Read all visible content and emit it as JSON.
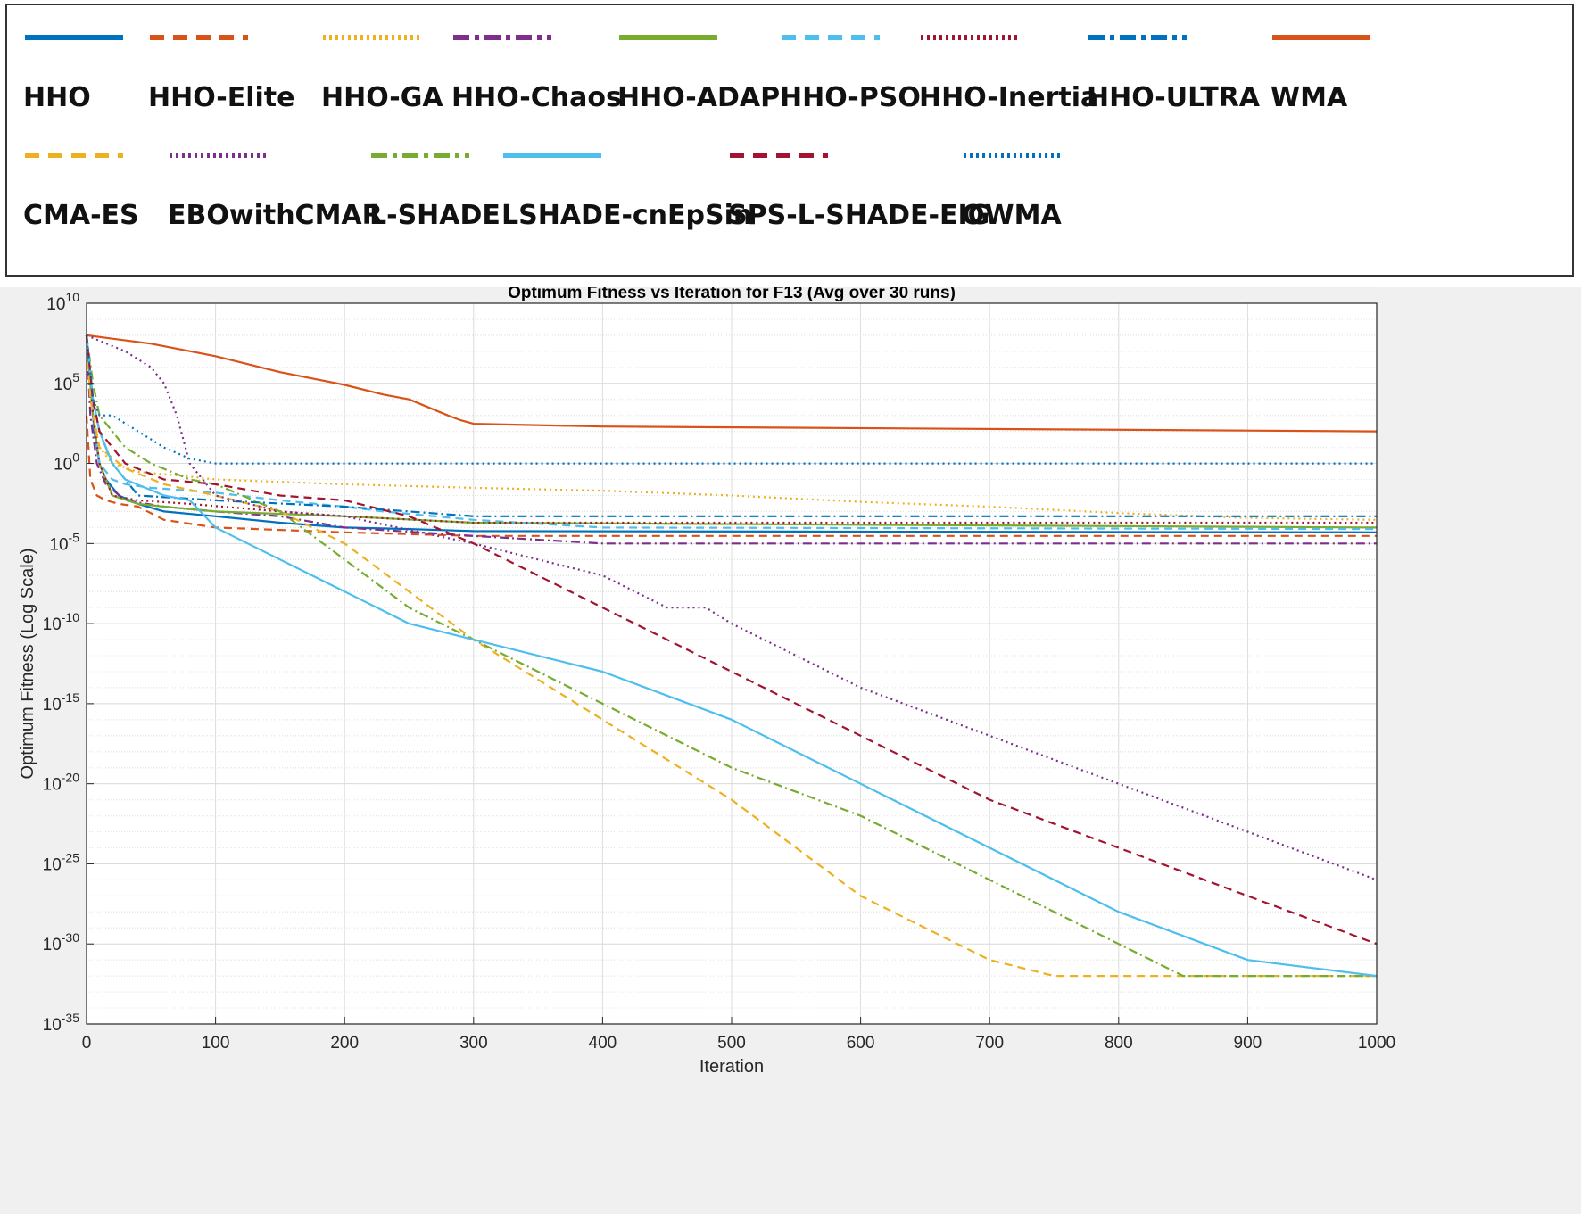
{
  "legend": [
    {
      "label": "HHO",
      "color": "#0072BD",
      "style": "solid"
    },
    {
      "label": "HHO-Elite",
      "color": "#D95319",
      "style": "dashed"
    },
    {
      "label": "HHO-GA",
      "color": "#EDB120",
      "style": "dotted"
    },
    {
      "label": "HHO-Chaos",
      "color": "#7E2F8E",
      "style": "dashdot"
    },
    {
      "label": "HHO-ADAP",
      "color": "#77AC30",
      "style": "solid"
    },
    {
      "label": "HHO-PSO",
      "color": "#4DBEEE",
      "style": "dashed"
    },
    {
      "label": "HHO-Inertia",
      "color": "#A2142F",
      "style": "dotted"
    },
    {
      "label": "HHO-ULTRA",
      "color": "#0072BD",
      "style": "dashdot"
    },
    {
      "label": "WMA",
      "color": "#D95319",
      "style": "solid"
    },
    {
      "label": "CMA-ES",
      "color": "#EDB120",
      "style": "dashed"
    },
    {
      "label": "EBOwithCMAR",
      "color": "#7E2F8E",
      "style": "dotted"
    },
    {
      "label": "L-SHADE",
      "color": "#77AC30",
      "style": "dashdot"
    },
    {
      "label": "LSHADE-cnEpSin",
      "color": "#4DBEEE",
      "style": "solid"
    },
    {
      "label": "SPS-L-SHADE-EIG",
      "color": "#A2142F",
      "style": "dashed"
    },
    {
      "label": "OWMA",
      "color": "#0072BD",
      "style": "dotted"
    }
  ],
  "chart_data": {
    "type": "line",
    "title": "Optimum Fitness vs Iteration for F13 (Avg over 30 runs)",
    "xlabel": "Iteration",
    "ylabel": "Optimum Fitness (Log Scale)",
    "xlim": [
      0,
      1000
    ],
    "ylim": [
      1e-35,
      10000000000.0
    ],
    "yscale": "log",
    "grid": true,
    "minor_grid": true,
    "xticks": [
      0,
      100,
      200,
      300,
      400,
      500,
      600,
      700,
      800,
      900,
      1000
    ],
    "xtick_labels": [
      "0",
      "100",
      "200",
      "300",
      "400",
      "500",
      "600",
      "700",
      "800",
      "900",
      "1000"
    ],
    "yticks": [
      {
        "value": 10000000000.0,
        "base": "10",
        "exp": "10"
      },
      {
        "value": 100000.0,
        "base": "10",
        "exp": "5"
      },
      {
        "value": 1.0,
        "base": "10",
        "exp": "0"
      },
      {
        "value": 1e-05,
        "base": "10",
        "exp": "-5"
      },
      {
        "value": 1e-10,
        "base": "10",
        "exp": "-10"
      },
      {
        "value": 1e-15,
        "base": "10",
        "exp": "-15"
      },
      {
        "value": 1e-20,
        "base": "10",
        "exp": "-20"
      },
      {
        "value": 1e-25,
        "base": "10",
        "exp": "-25"
      },
      {
        "value": 1e-30,
        "base": "10",
        "exp": "-30"
      },
      {
        "value": 1e-35,
        "base": "10",
        "exp": "-35"
      }
    ],
    "series": [
      {
        "name": "HHO",
        "color": "#0072BD",
        "style": "solid",
        "x": [
          0,
          3,
          6,
          10,
          15,
          25,
          40,
          60,
          100,
          150,
          200,
          250,
          300,
          1000
        ],
        "y": [
          100000000.0,
          100000.0,
          100.0,
          1,
          0.1,
          0.01,
          0.003,
          0.001,
          0.0005,
          0.0002,
          0.0001,
          8e-05,
          6e-05,
          5e-05
        ]
      },
      {
        "name": "HHO-Elite",
        "color": "#D95319",
        "style": "dashed",
        "x": [
          0,
          3,
          8,
          15,
          25,
          40,
          60,
          100,
          200,
          300,
          1000
        ],
        "y": [
          1000.0,
          0.1,
          0.01,
          0.005,
          0.003,
          0.002,
          0.0003,
          0.0001,
          5e-05,
          3e-05,
          3e-05
        ]
      },
      {
        "name": "HHO-GA",
        "color": "#EDB120",
        "style": "dotted",
        "x": [
          0,
          5,
          10,
          20,
          40,
          80,
          100,
          200,
          300,
          400,
          500,
          600,
          700,
          800,
          900,
          1000
        ],
        "y": [
          100000000.0,
          1000.0,
          10,
          1,
          0.3,
          0.15,
          0.1,
          0.05,
          0.03,
          0.02,
          0.01,
          0.004,
          0.002,
          0.0008,
          0.0004,
          0.0003
        ]
      },
      {
        "name": "HHO-Chaos",
        "color": "#7E2F8E",
        "style": "dashdot",
        "x": [
          0,
          3,
          8,
          15,
          30,
          60,
          100,
          150,
          200,
          300,
          400,
          1000
        ],
        "y": [
          100000000.0,
          1000.0,
          1,
          0.05,
          0.005,
          0.002,
          0.001,
          0.0005,
          0.0001,
          3e-05,
          1e-05,
          1e-05
        ]
      },
      {
        "name": "HHO-ADAP",
        "color": "#77AC30",
        "style": "solid",
        "x": [
          0,
          5,
          10,
          20,
          40,
          60,
          100,
          200,
          300,
          1000
        ],
        "y": [
          100000000.0,
          1000.0,
          1,
          0.01,
          0.003,
          0.002,
          0.001,
          0.0005,
          0.0002,
          0.0001
        ]
      },
      {
        "name": "HHO-PSO",
        "color": "#4DBEEE",
        "style": "dashed",
        "x": [
          0,
          5,
          10,
          20,
          30,
          50,
          80,
          100,
          150,
          200,
          230,
          300,
          400,
          1000
        ],
        "y": [
          100000000.0,
          1000.0,
          1,
          0.1,
          0.05,
          0.03,
          0.02,
          0.015,
          0.005,
          0.002,
          0.001,
          0.0003,
          0.0001,
          8e-05
        ]
      },
      {
        "name": "HHO-Inertia",
        "color": "#A2142F",
        "style": "dotted",
        "x": [
          0,
          5,
          10,
          20,
          40,
          80,
          150,
          200,
          300,
          1000
        ],
        "y": [
          100000000.0,
          1000.0,
          1,
          0.01,
          0.005,
          0.003,
          0.001,
          0.0005,
          0.0002,
          0.0002
        ]
      },
      {
        "name": "HHO-ULTRA",
        "color": "#0072BD",
        "style": "dashdot",
        "x": [
          0,
          5,
          10,
          20,
          30,
          40,
          100,
          200,
          250,
          300,
          1000
        ],
        "y": [
          100000000.0,
          10000.0,
          100,
          1,
          0.1,
          0.01,
          0.005,
          0.002,
          0.001,
          0.0005,
          0.0005
        ]
      },
      {
        "name": "WMA",
        "color": "#D95319",
        "style": "solid",
        "x": [
          0,
          50,
          100,
          150,
          200,
          230,
          250,
          280,
          290,
          300,
          400,
          1000
        ],
        "y": [
          100000000.0,
          30000000.0,
          5000000.0,
          500000.0,
          80000.0,
          20000.0,
          10000.0,
          1000.0,
          500,
          300,
          200,
          100
        ]
      },
      {
        "name": "CMA-ES",
        "color": "#EDB120",
        "style": "dashed",
        "x": [
          0,
          3,
          10,
          30,
          60,
          100,
          150,
          200,
          250,
          300,
          400,
          500,
          600,
          700,
          750,
          800,
          1000
        ],
        "y": [
          100000000.0,
          10000.0,
          10,
          0.5,
          0.05,
          0.01,
          0.001,
          1e-05,
          1e-08,
          1e-11,
          1e-16,
          1e-21,
          1e-27,
          1e-31,
          1e-32,
          1e-32,
          1e-32
        ]
      },
      {
        "name": "EBOwithCMAR",
        "color": "#7E2F8E",
        "style": "dotted",
        "x": [
          0,
          30,
          50,
          60,
          70,
          80,
          90,
          100,
          150,
          200,
          300,
          400,
          450,
          480,
          500,
          550,
          600,
          700,
          800,
          900,
          1000
        ],
        "y": [
          100000000.0,
          10000000.0,
          1000000.0,
          100000.0,
          1000.0,
          1,
          0.1,
          0.01,
          0.001,
          0.0005,
          1e-05,
          1e-07,
          1e-09,
          1e-09,
          1e-10,
          1e-12,
          1e-14,
          1e-17,
          1e-20,
          1e-23,
          1e-26
        ]
      },
      {
        "name": "L-SHADE",
        "color": "#77AC30",
        "style": "dashdot",
        "x": [
          0,
          5,
          10,
          30,
          50,
          80,
          100,
          150,
          200,
          250,
          300,
          400,
          500,
          600,
          700,
          800,
          850,
          900,
          1000
        ],
        "y": [
          100000000.0,
          100000.0,
          1000.0,
          10,
          1,
          0.1,
          0.05,
          0.001,
          1e-06,
          1e-09,
          1e-11,
          1e-15,
          1e-19,
          1e-22,
          1e-26,
          1e-30,
          1e-32,
          1e-32,
          1e-32
        ]
      },
      {
        "name": "LSHADE-cnEpSin",
        "color": "#4DBEEE",
        "style": "solid",
        "x": [
          0,
          5,
          10,
          20,
          30,
          60,
          80,
          100,
          150,
          200,
          250,
          300,
          400,
          500,
          600,
          700,
          800,
          900,
          1000
        ],
        "y": [
          100000000.0,
          10000.0,
          100,
          1,
          0.1,
          0.01,
          0.005,
          0.0001,
          1e-06,
          1e-08,
          1e-10,
          1e-11,
          1e-13,
          1e-16,
          1e-20,
          1e-24,
          1e-28,
          1e-31,
          1e-32
        ]
      },
      {
        "name": "SPS-L-SHADE-EIG",
        "color": "#A2142F",
        "style": "dashed",
        "x": [
          0,
          5,
          10,
          30,
          60,
          100,
          150,
          200,
          250,
          300,
          400,
          500,
          600,
          700,
          800,
          900,
          1000
        ],
        "y": [
          100000000.0,
          10000.0,
          100,
          1,
          0.1,
          0.05,
          0.01,
          0.005,
          0.0005,
          1e-05,
          1e-09,
          1e-13,
          1e-17,
          1e-21,
          1e-24,
          1e-27,
          1e-30
        ]
      },
      {
        "name": "OWMA",
        "color": "#0072BD",
        "style": "dotted",
        "x": [
          0,
          5,
          10,
          20,
          40,
          60,
          80,
          100,
          200,
          1000
        ],
        "y": [
          100000000.0,
          10000.0,
          1000.0,
          1000.0,
          100,
          10,
          2,
          1,
          1,
          1
        ]
      }
    ]
  }
}
